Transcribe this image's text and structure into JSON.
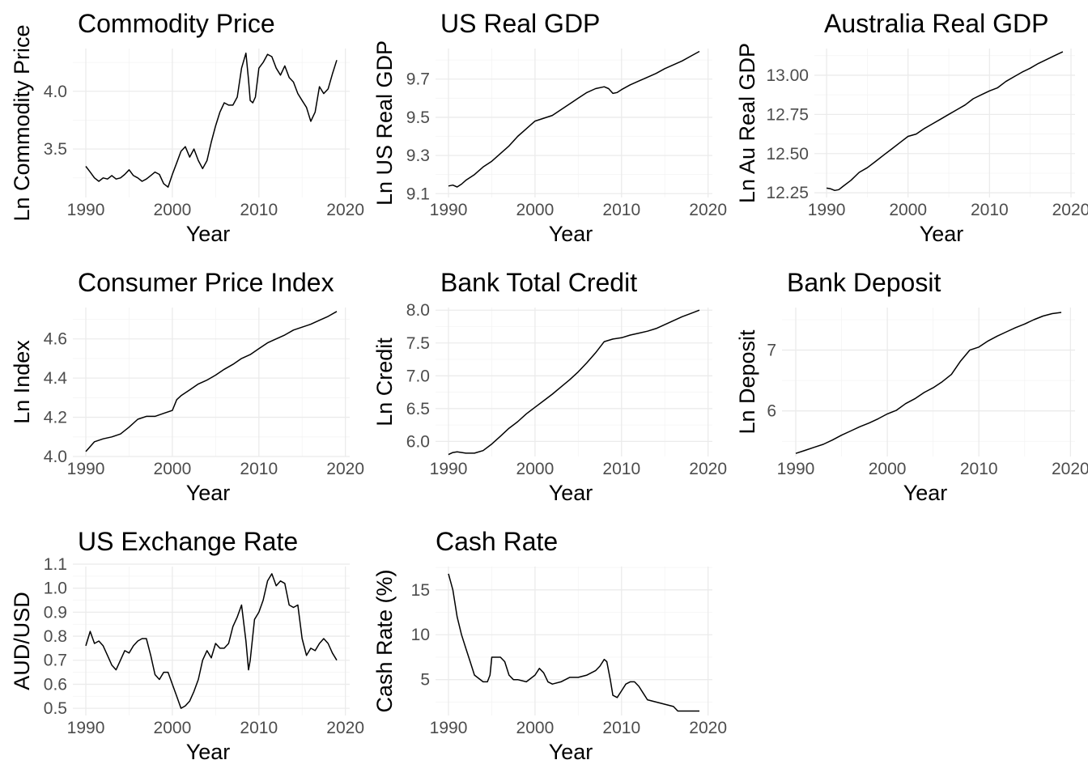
{
  "chart_data": [
    {
      "type": "line",
      "title": "Commodity Price",
      "xlabel": "Year",
      "ylabel": "Ln Commodity Price",
      "xlim": [
        1988.5,
        2020.5
      ],
      "ylim": [
        3.08,
        4.37
      ],
      "xticks": [
        1990,
        2000,
        2010,
        2020
      ],
      "yticks": [
        3.5,
        4.0
      ],
      "ytick_labels": [
        "3.5",
        "4.0"
      ],
      "grid": true,
      "series": [
        {
          "x": [
            1990,
            1990.5,
            1991,
            1991.5,
            1992,
            1992.5,
            1993,
            1993.5,
            1994,
            1994.5,
            1995,
            1995.5,
            1996,
            1996.5,
            1997,
            1997.5,
            1998,
            1998.5,
            1999,
            1999.5,
            2000,
            2000.5,
            2001,
            2001.5,
            2002,
            2002.5,
            2003,
            2003.5,
            2004,
            2004.5,
            2005,
            2005.5,
            2006,
            2006.5,
            2007,
            2007.5,
            2008,
            2008.5,
            2008.8,
            2009,
            2009.3,
            2009.6,
            2010,
            2010.5,
            2011,
            2011.5,
            2012,
            2012.5,
            2013,
            2013.5,
            2014,
            2014.5,
            2015,
            2015.5,
            2016,
            2016.5,
            2017,
            2017.5,
            2018,
            2018.5,
            2019
          ],
          "values": [
            3.35,
            3.3,
            3.25,
            3.22,
            3.25,
            3.24,
            3.27,
            3.24,
            3.25,
            3.28,
            3.32,
            3.27,
            3.25,
            3.22,
            3.24,
            3.27,
            3.3,
            3.28,
            3.2,
            3.17,
            3.28,
            3.38,
            3.48,
            3.52,
            3.43,
            3.5,
            3.4,
            3.33,
            3.4,
            3.56,
            3.7,
            3.82,
            3.9,
            3.88,
            3.88,
            3.95,
            4.2,
            4.33,
            4.1,
            3.92,
            3.9,
            3.95,
            4.2,
            4.25,
            4.32,
            4.3,
            4.2,
            4.14,
            4.22,
            4.12,
            4.08,
            3.98,
            3.92,
            3.86,
            3.74,
            3.82,
            4.04,
            3.98,
            4.02,
            4.15,
            4.27
          ]
        }
      ]
    },
    {
      "type": "line",
      "title": "US Real GDP",
      "xlabel": "Year",
      "ylabel": "Ln US Real GDP",
      "xlim": [
        1988.5,
        2020.5
      ],
      "ylim": [
        9.08,
        9.86
      ],
      "xticks": [
        1990,
        2000,
        2010,
        2020
      ],
      "yticks": [
        9.1,
        9.3,
        9.5,
        9.7
      ],
      "ytick_labels": [
        "9.1",
        "9.3",
        "9.5",
        "9.7"
      ],
      "grid": true,
      "series": [
        {
          "x": [
            1990,
            1990.5,
            1991,
            1991.5,
            1992,
            1993,
            1994,
            1995,
            1996,
            1997,
            1998,
            1999,
            2000,
            2001,
            2002,
            2003,
            2004,
            2005,
            2006,
            2007,
            2008,
            2008.5,
            2009,
            2009.5,
            2010,
            2011,
            2012,
            2013,
            2014,
            2015,
            2016,
            2017,
            2018,
            2019
          ],
          "values": [
            9.14,
            9.145,
            9.135,
            9.15,
            9.17,
            9.2,
            9.24,
            9.27,
            9.31,
            9.35,
            9.4,
            9.44,
            9.48,
            9.495,
            9.51,
            9.54,
            9.57,
            9.6,
            9.63,
            9.65,
            9.66,
            9.65,
            9.625,
            9.63,
            9.645,
            9.67,
            9.69,
            9.71,
            9.73,
            9.755,
            9.775,
            9.795,
            9.82,
            9.845
          ]
        }
      ]
    },
    {
      "type": "line",
      "title": "Australia Real GDP",
      "xlabel": "Year",
      "ylabel": "Ln Au Real GDP",
      "xlim": [
        1988.5,
        2020.5
      ],
      "ylim": [
        12.22,
        13.17
      ],
      "xticks": [
        1990,
        2000,
        2010,
        2020
      ],
      "yticks": [
        12.25,
        12.5,
        12.75,
        13.0
      ],
      "ytick_labels": [
        "12.25",
        "12.50",
        "12.75",
        "13.00"
      ],
      "grid": true,
      "series": [
        {
          "x": [
            1990,
            1990.5,
            1991,
            1991.5,
            1992,
            1993,
            1994,
            1995,
            1996,
            1997,
            1998,
            1999,
            2000,
            2001,
            2002,
            2003,
            2004,
            2005,
            2006,
            2007,
            2008,
            2009,
            2010,
            2011,
            2012,
            2013,
            2014,
            2015,
            2016,
            2017,
            2018,
            2019
          ],
          "values": [
            12.28,
            12.275,
            12.265,
            12.27,
            12.29,
            12.33,
            12.38,
            12.41,
            12.45,
            12.49,
            12.53,
            12.57,
            12.61,
            12.625,
            12.66,
            12.69,
            12.72,
            12.75,
            12.78,
            12.81,
            12.85,
            12.875,
            12.9,
            12.92,
            12.96,
            12.99,
            13.02,
            13.045,
            13.075,
            13.1,
            13.125,
            13.15
          ]
        }
      ]
    },
    {
      "type": "line",
      "title": "Consumer Price Index",
      "xlabel": "Year",
      "ylabel": "Ln Index",
      "xlim": [
        1988.5,
        2020.5
      ],
      "ylim": [
        4.0,
        4.76
      ],
      "xticks": [
        1990,
        2000,
        2010,
        2020
      ],
      "yticks": [
        4.0,
        4.2,
        4.4,
        4.6
      ],
      "ytick_labels": [
        "4.0",
        "4.2",
        "4.4",
        "4.6"
      ],
      "grid": true,
      "series": [
        {
          "x": [
            1990,
            1991,
            1992,
            1993,
            1994,
            1995,
            1996,
            1997,
            1998,
            1999,
            2000,
            2000.5,
            2001,
            2002,
            2003,
            2004,
            2005,
            2006,
            2007,
            2008,
            2009,
            2010,
            2011,
            2012,
            2013,
            2014,
            2015,
            2016,
            2017,
            2018,
            2019
          ],
          "values": [
            4.025,
            4.075,
            4.09,
            4.1,
            4.115,
            4.15,
            4.19,
            4.205,
            4.205,
            4.22,
            4.235,
            4.29,
            4.31,
            4.34,
            4.37,
            4.39,
            4.415,
            4.445,
            4.47,
            4.5,
            4.52,
            4.55,
            4.58,
            4.6,
            4.62,
            4.645,
            4.66,
            4.675,
            4.695,
            4.715,
            4.74
          ]
        }
      ]
    },
    {
      "type": "line",
      "title": "Bank Total Credit",
      "xlabel": "Year",
      "ylabel": "Ln Credit",
      "xlim": [
        1988.5,
        2020.5
      ],
      "ylim": [
        5.77,
        8.04
      ],
      "xticks": [
        1990,
        2000,
        2010,
        2020
      ],
      "yticks": [
        6.0,
        6.5,
        7.0,
        7.5,
        8.0
      ],
      "ytick_labels": [
        "6.0",
        "6.5",
        "7.0",
        "7.5",
        "8.0"
      ],
      "grid": true,
      "series": [
        {
          "x": [
            1990,
            1990.5,
            1991,
            1992,
            1993,
            1994,
            1995,
            1996,
            1997,
            1998,
            1999,
            2000,
            2001,
            2002,
            2003,
            2004,
            2005,
            2006,
            2007,
            2008,
            2009,
            2010,
            2011,
            2012,
            2013,
            2014,
            2015,
            2016,
            2017,
            2018,
            2019
          ],
          "values": [
            5.8,
            5.83,
            5.84,
            5.82,
            5.82,
            5.86,
            5.96,
            6.08,
            6.2,
            6.3,
            6.42,
            6.52,
            6.62,
            6.72,
            6.83,
            6.94,
            7.06,
            7.2,
            7.35,
            7.52,
            7.56,
            7.58,
            7.62,
            7.65,
            7.68,
            7.72,
            7.78,
            7.84,
            7.9,
            7.95,
            8.0
          ]
        }
      ]
    },
    {
      "type": "line",
      "title": "Bank Deposit",
      "xlabel": "Year",
      "ylabel": "Ln Deposit",
      "xlim": [
        1988.5,
        2020.5
      ],
      "ylim": [
        5.25,
        7.7
      ],
      "xticks": [
        1990,
        2000,
        2010,
        2020
      ],
      "yticks": [
        6,
        7
      ],
      "ytick_labels": [
        "6",
        "7"
      ],
      "grid": true,
      "series": [
        {
          "x": [
            1990,
            1991,
            1992,
            1993,
            1994,
            1995,
            1996,
            1997,
            1998,
            1999,
            2000,
            2001,
            2002,
            2003,
            2004,
            2005,
            2006,
            2007,
            2008,
            2009,
            2010,
            2011,
            2012,
            2013,
            2014,
            2015,
            2016,
            2017,
            2018,
            2019
          ],
          "values": [
            5.3,
            5.35,
            5.4,
            5.45,
            5.52,
            5.6,
            5.67,
            5.74,
            5.8,
            5.87,
            5.95,
            6.01,
            6.12,
            6.2,
            6.3,
            6.38,
            6.48,
            6.6,
            6.82,
            7.0,
            7.05,
            7.15,
            7.23,
            7.3,
            7.37,
            7.43,
            7.5,
            7.56,
            7.6,
            7.62
          ]
        }
      ]
    },
    {
      "type": "line",
      "title": "US Exchange Rate",
      "xlabel": "Year",
      "ylabel": "AUD/USD",
      "xlim": [
        1988.5,
        2020.5
      ],
      "ylim": [
        0.47,
        1.09
      ],
      "xticks": [
        1990,
        2000,
        2010,
        2020
      ],
      "yticks": [
        0.5,
        0.6,
        0.7,
        0.8,
        0.9,
        1.0,
        1.1
      ],
      "ytick_labels": [
        "0.5",
        "0.6",
        "0.7",
        "0.8",
        "0.9",
        "1.0",
        "1.1"
      ],
      "grid": true,
      "series": [
        {
          "x": [
            1990,
            1990.5,
            1991,
            1991.5,
            1992,
            1992.5,
            1993,
            1993.5,
            1994,
            1994.5,
            1995,
            1995.5,
            1996,
            1996.5,
            1997,
            1997.5,
            1998,
            1998.5,
            1999,
            1999.5,
            2000,
            2000.5,
            2001,
            2001.5,
            2002,
            2002.5,
            2003,
            2003.5,
            2004,
            2004.5,
            2005,
            2005.5,
            2006,
            2006.5,
            2007,
            2007.5,
            2008,
            2008.5,
            2008.8,
            2009,
            2009.5,
            2010,
            2010.5,
            2011,
            2011.5,
            2012,
            2012.5,
            2013,
            2013.5,
            2014,
            2014.5,
            2015,
            2015.5,
            2016,
            2016.5,
            2017,
            2017.5,
            2018,
            2018.5,
            2019
          ],
          "values": [
            0.76,
            0.82,
            0.77,
            0.78,
            0.76,
            0.72,
            0.68,
            0.66,
            0.7,
            0.74,
            0.73,
            0.76,
            0.78,
            0.79,
            0.79,
            0.72,
            0.64,
            0.62,
            0.65,
            0.65,
            0.6,
            0.55,
            0.5,
            0.51,
            0.53,
            0.57,
            0.62,
            0.7,
            0.74,
            0.71,
            0.77,
            0.75,
            0.75,
            0.77,
            0.84,
            0.88,
            0.93,
            0.78,
            0.66,
            0.7,
            0.87,
            0.9,
            0.95,
            1.03,
            1.06,
            1.01,
            1.03,
            1.02,
            0.93,
            0.92,
            0.93,
            0.79,
            0.72,
            0.75,
            0.74,
            0.77,
            0.79,
            0.77,
            0.73,
            0.7
          ]
        }
      ]
    },
    {
      "type": "line",
      "title": "Cash Rate",
      "xlabel": "Year",
      "ylabel": "Cash Rate (%)",
      "xlim": [
        1988.5,
        2020.5
      ],
      "ylim": [
        1.0,
        17.6
      ],
      "xticks": [
        1990,
        2000,
        2010,
        2020
      ],
      "yticks": [
        5,
        10,
        15
      ],
      "ytick_labels": [
        "5",
        "10",
        "15"
      ],
      "grid": true,
      "series": [
        {
          "x": [
            1990,
            1990.5,
            1991,
            1991.5,
            1992,
            1992.5,
            1993,
            1994,
            1994.5,
            1994.8,
            1995,
            1996,
            1996.5,
            1997,
            1997.5,
            1998,
            1999,
            2000,
            2000.5,
            2001,
            2001.5,
            2002,
            2003,
            2004,
            2005,
            2006,
            2007,
            2007.5,
            2008,
            2008.3,
            2008.7,
            2009,
            2009.5,
            2010,
            2010.5,
            2011,
            2011.5,
            2012,
            2012.5,
            2013,
            2014,
            2015,
            2016,
            2016.5,
            2017,
            2018,
            2019
          ],
          "values": [
            16.8,
            15,
            12,
            10,
            8.5,
            7,
            5.5,
            4.75,
            4.75,
            5.5,
            7.5,
            7.5,
            7,
            5.5,
            5,
            5,
            4.75,
            5.5,
            6.25,
            5.75,
            4.75,
            4.5,
            4.75,
            5.25,
            5.25,
            5.5,
            6,
            6.5,
            7.25,
            7,
            5,
            3.25,
            3,
            3.75,
            4.5,
            4.75,
            4.75,
            4.25,
            3.5,
            2.75,
            2.5,
            2.25,
            2,
            1.5,
            1.5,
            1.5,
            1.5
          ]
        }
      ]
    }
  ]
}
